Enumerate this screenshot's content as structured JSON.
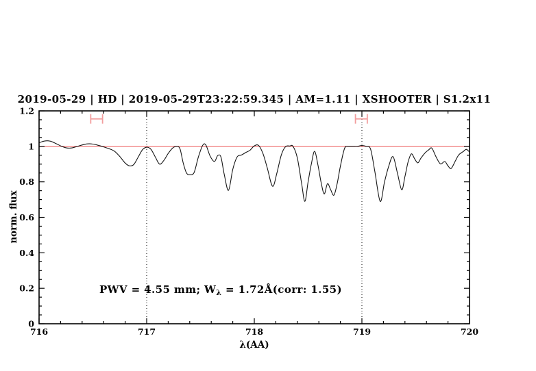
{
  "title": {
    "text": "2019-05-29 | HD | 2019-05-29T23:22:59.345 | AM=1.11 | XSHOOTER | S1.2x11",
    "color": "#2323cd"
  },
  "annotation": {
    "pre": "PWV  =  4.55  mm;  W",
    "sub": "λ",
    "post": "  =  1.72Å(corr:  1.55)",
    "color": "#2323cd"
  },
  "chart_data": {
    "type": "line",
    "title": "2019-05-29 | HD | 2019-05-29T23:22:59.345 | AM=1.11 | XSHOOTER | S1.2x11",
    "xlabel": "λ(AA)",
    "ylabel": "norm. flux",
    "xlim": [
      716,
      720
    ],
    "ylim": [
      0,
      1.2
    ],
    "grid": "off",
    "legend": "none",
    "x_major_ticks": [
      716,
      717,
      718,
      719,
      720
    ],
    "x_tick_labels": [
      "716",
      "717",
      "718",
      "719",
      "720"
    ],
    "x_minor_step": 0.2,
    "y_major_ticks": [
      0,
      0.2,
      0.4,
      0.6,
      0.8,
      1,
      1.2
    ],
    "y_tick_labels": [
      "0",
      "0.2",
      "0.4",
      "0.6",
      "0.8",
      "1",
      "1.2"
    ],
    "y_minor_step": 0.05,
    "continuum_line": {
      "y": 1.0,
      "color": "#f08080"
    },
    "dotted_vlines": [
      717,
      719
    ],
    "range_markers": [
      {
        "x1": 716.48,
        "x2": 716.59,
        "y": 1.155,
        "color": "#f29e9e"
      },
      {
        "x1": 718.94,
        "x2": 719.05,
        "y": 1.155,
        "color": "#f29e9e"
      }
    ],
    "series": [
      {
        "name": "normalized spectrum",
        "color": "#151515",
        "x": [
          716.0,
          716.05,
          716.1,
          716.15,
          716.2,
          716.25,
          716.3,
          716.35,
          716.4,
          716.45,
          716.5,
          716.55,
          716.6,
          716.65,
          716.7,
          716.75,
          716.8,
          716.84,
          716.88,
          716.92,
          716.96,
          717.0,
          717.04,
          717.08,
          717.12,
          717.16,
          717.2,
          717.24,
          717.28,
          717.31,
          717.34,
          717.37,
          717.4,
          717.44,
          717.48,
          717.52,
          717.55,
          717.59,
          717.63,
          717.66,
          717.69,
          717.72,
          717.76,
          717.8,
          717.84,
          717.88,
          717.92,
          717.96,
          718.0,
          718.04,
          718.08,
          718.12,
          718.17,
          718.21,
          718.25,
          718.29,
          718.33,
          718.36,
          718.4,
          718.44,
          718.47,
          718.5,
          718.53,
          718.56,
          718.59,
          718.62,
          718.65,
          718.68,
          718.71,
          718.74,
          718.77,
          718.8,
          718.84,
          718.88,
          718.92,
          718.96,
          719.0,
          719.04,
          719.08,
          719.12,
          719.17,
          719.21,
          719.25,
          719.29,
          719.33,
          719.37,
          719.4,
          719.43,
          719.46,
          719.49,
          719.52,
          719.55,
          719.59,
          719.62,
          719.65,
          719.69,
          719.73,
          719.77,
          719.8,
          719.83,
          719.87,
          719.9,
          719.94,
          719.97,
          720.0
        ],
        "y": [
          1.02,
          1.03,
          1.03,
          1.018,
          1.003,
          0.992,
          0.991,
          0.999,
          1.008,
          1.014,
          1.013,
          1.006,
          0.997,
          0.987,
          0.973,
          0.943,
          0.906,
          0.89,
          0.898,
          0.938,
          0.98,
          0.995,
          0.983,
          0.94,
          0.9,
          0.921,
          0.96,
          0.99,
          1.0,
          0.985,
          0.905,
          0.85,
          0.84,
          0.852,
          0.94,
          1.005,
          1.008,
          0.945,
          0.915,
          0.948,
          0.94,
          0.845,
          0.752,
          0.87,
          0.94,
          0.951,
          0.965,
          0.978,
          1.003,
          1.005,
          0.96,
          0.88,
          0.775,
          0.85,
          0.95,
          0.998,
          1.002,
          1.0,
          0.935,
          0.79,
          0.69,
          0.8,
          0.9,
          0.972,
          0.9,
          0.8,
          0.732,
          0.79,
          0.755,
          0.725,
          0.79,
          0.888,
          0.99,
          1.0,
          1.0,
          1.0,
          1.005,
          1.0,
          0.985,
          0.86,
          0.69,
          0.8,
          0.89,
          0.942,
          0.85,
          0.755,
          0.83,
          0.914,
          0.958,
          0.93,
          0.907,
          0.935,
          0.965,
          0.98,
          0.99,
          0.94,
          0.901,
          0.915,
          0.89,
          0.876,
          0.92,
          0.952,
          0.97,
          0.983,
          0.968
        ]
      }
    ]
  }
}
